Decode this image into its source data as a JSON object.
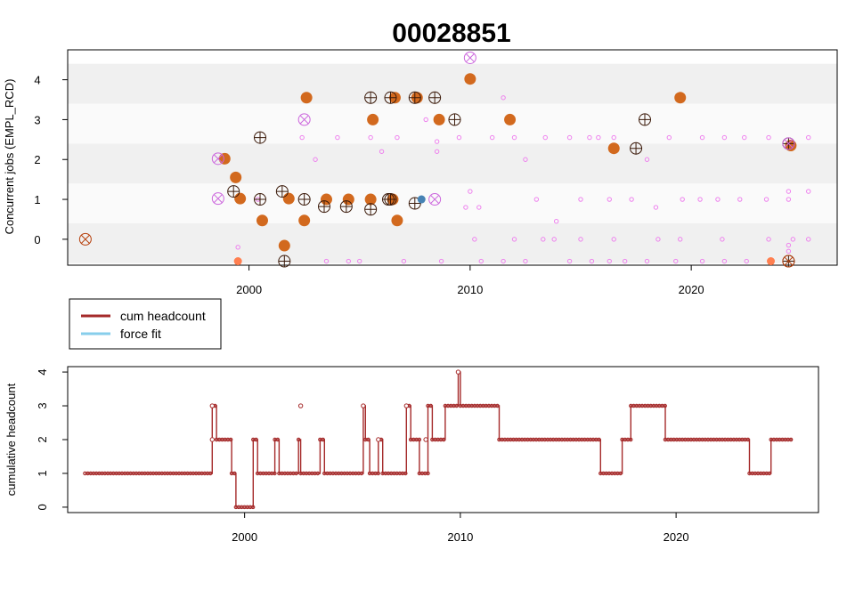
{
  "chart_data": [
    {
      "type": "scatter",
      "title": "00028851",
      "ylabel": "Concurrent jobs (EMPL_RCD)",
      "xlim": [
        1991.8,
        2026.6
      ],
      "ylim": [
        -0.65,
        4.75
      ],
      "x_ticks": [
        2000,
        2010,
        2020
      ],
      "y_ticks": [
        0,
        1,
        2,
        3,
        4
      ],
      "bands": [
        {
          "y": [
            -0.6,
            0.4
          ],
          "color": "#f0f0f0"
        },
        {
          "y": [
            0.4,
            1.4
          ],
          "color": "#fafafa"
        },
        {
          "y": [
            1.4,
            2.4
          ],
          "color": "#f0f0f0"
        },
        {
          "y": [
            2.4,
            3.4
          ],
          "color": "#fafafa"
        },
        {
          "y": [
            3.4,
            4.4
          ],
          "color": "#f0f0f0"
        }
      ],
      "colors": {
        "main": "#d2691e",
        "crossed": "#b7410e",
        "purple": "#ee82ee",
        "blue": "#4682b4",
        "salmon": "#ff7f50"
      },
      "series": [
        {
          "points": [
            [
              1998.9,
              2.02
            ],
            [
              1999.4,
              1.55
            ],
            [
              1999.6,
              1.02
            ],
            [
              2000.6,
              0.47
            ],
            [
              2001.6,
              -0.16
            ],
            [
              2001.8,
              1.02
            ],
            [
              2002.5,
              0.47
            ],
            [
              2002.6,
              3.55
            ],
            [
              2003.5,
              1.0
            ],
            [
              2004.5,
              1.0
            ],
            [
              2005.5,
              1.0
            ],
            [
              2005.6,
              3.0
            ],
            [
              2006.5,
              1.0
            ],
            [
              2006.6,
              3.55
            ],
            [
              2006.7,
              0.47
            ],
            [
              2007.6,
              3.55
            ],
            [
              2008.6,
              3.0
            ],
            [
              2010.0,
              4.02
            ],
            [
              2011.8,
              3.0
            ],
            [
              2016.5,
              2.28
            ],
            [
              2019.5,
              3.55
            ],
            [
              2024.5,
              2.35
            ]
          ]
        },
        {
          "points": [
            [
              1999.3,
              1.2
            ],
            [
              2000.5,
              1.0
            ],
            [
              2000.5,
              2.55
            ],
            [
              2001.5,
              1.2
            ],
            [
              2001.6,
              -0.55
            ],
            [
              2002.5,
              1.0
            ],
            [
              2003.4,
              0.82
            ],
            [
              2004.4,
              0.82
            ],
            [
              2005.5,
              0.75
            ],
            [
              2005.5,
              3.55
            ],
            [
              2006.3,
              1.0
            ],
            [
              2006.4,
              3.55
            ],
            [
              2006.4,
              1.0
            ],
            [
              2007.5,
              0.9
            ],
            [
              2007.5,
              3.55
            ],
            [
              2008.4,
              3.55
            ],
            [
              2009.3,
              3.0
            ],
            [
              2017.5,
              2.28
            ],
            [
              2017.9,
              3.0
            ],
            [
              2024.4,
              2.4
            ],
            [
              2024.4,
              -0.55
            ]
          ]
        },
        {
          "points": [
            [
              1992.6,
              0.0
            ],
            [
              1998.6,
              2.02
            ],
            [
              1998.6,
              1.02
            ],
            [
              2002.5,
              3.0
            ],
            [
              2008.4,
              1.0
            ],
            [
              2010.0,
              4.55
            ],
            [
              2024.4,
              2.4
            ],
            [
              2024.4,
              -0.55
            ]
          ]
        },
        {
          "points": [
            [
              1999.5,
              -0.55
            ],
            [
              2023.6,
              -0.55
            ]
          ]
        },
        {
          "points": [
            [
              2007.8,
              1.0
            ]
          ]
        },
        {
          "points": [
            [
              1999.5,
              -0.2
            ],
            [
              2000.4,
              1.0
            ],
            [
              2002.4,
              2.55
            ],
            [
              2003.0,
              2.0
            ],
            [
              2004.0,
              2.55
            ],
            [
              2005.5,
              2.55
            ],
            [
              2006.0,
              2.2
            ],
            [
              2006.7,
              2.55
            ],
            [
              2008.0,
              3.0
            ],
            [
              2008.5,
              2.2
            ],
            [
              2008.5,
              2.45
            ],
            [
              2009.5,
              2.55
            ],
            [
              2009.8,
              0.8
            ],
            [
              2010.0,
              1.2
            ],
            [
              2010.4,
              0.8
            ],
            [
              2011.0,
              2.55
            ],
            [
              2011.5,
              3.55
            ],
            [
              2012.0,
              2.55
            ],
            [
              2012.5,
              2.0
            ],
            [
              2013.0,
              1.0
            ],
            [
              2013.4,
              2.55
            ],
            [
              2013.9,
              0.45
            ],
            [
              2014.5,
              2.55
            ],
            [
              2015.0,
              1.0
            ],
            [
              2015.4,
              2.55
            ],
            [
              2015.8,
              2.55
            ],
            [
              2016.3,
              1.0
            ],
            [
              2016.5,
              2.55
            ],
            [
              2017.3,
              1.0
            ],
            [
              2018.0,
              2.0
            ],
            [
              2018.4,
              0.8
            ],
            [
              2019.0,
              2.55
            ],
            [
              2019.6,
              1.0
            ],
            [
              2020.4,
              1.0
            ],
            [
              2020.5,
              2.55
            ],
            [
              2021.2,
              1.0
            ],
            [
              2021.5,
              2.55
            ],
            [
              2022.2,
              1.0
            ],
            [
              2022.4,
              2.55
            ],
            [
              2023.4,
              1.0
            ],
            [
              2023.5,
              2.55
            ],
            [
              2024.4,
              1.0
            ],
            [
              2024.4,
              1.2
            ],
            [
              2024.4,
              -0.15
            ],
            [
              2025.3,
              2.55
            ],
            [
              2025.3,
              1.2
            ],
            [
              2025.3,
              0.0
            ],
            [
              2003.5,
              -0.55
            ],
            [
              2004.5,
              -0.55
            ],
            [
              2005.0,
              -0.55
            ],
            [
              2007.0,
              -0.55
            ],
            [
              2008.7,
              -0.55
            ],
            [
              2010.5,
              -0.55
            ],
            [
              2011.5,
              -0.55
            ],
            [
              2012.5,
              -0.55
            ],
            [
              2013.3,
              0.0
            ],
            [
              2014.5,
              -0.55
            ],
            [
              2015.5,
              -0.55
            ],
            [
              2016.3,
              -0.55
            ],
            [
              2017.0,
              -0.55
            ],
            [
              2018.0,
              -0.55
            ],
            [
              2019.3,
              -0.55
            ],
            [
              2020.5,
              -0.55
            ],
            [
              2021.5,
              -0.55
            ],
            [
              2022.5,
              -0.55
            ],
            [
              2024.6,
              0.0
            ],
            [
              2010.2,
              0.0
            ],
            [
              2012.0,
              0.0
            ],
            [
              2013.8,
              0.0
            ],
            [
              2015.0,
              0.0
            ],
            [
              2016.5,
              0.0
            ],
            [
              2018.5,
              0.0
            ],
            [
              2019.5,
              0.0
            ],
            [
              2021.4,
              0.0
            ],
            [
              2024.4,
              -0.3
            ],
            [
              2023.5,
              0.0
            ]
          ]
        }
      ]
    },
    {
      "type": "line",
      "ylabel": "cumulative headcount",
      "xlim": [
        1991.8,
        2026.6
      ],
      "ylim": [
        -0.16,
        4.16
      ],
      "x_ticks": [
        2000,
        2010,
        2020
      ],
      "y_ticks": [
        0,
        1,
        2,
        3,
        4
      ],
      "color": "#a52a2a",
      "legend": {
        "position": "between-panels-left",
        "entries": [
          {
            "label": "cum headcount",
            "color": "#a52a2a"
          },
          {
            "label": "force fit",
            "color": "#87ceeb"
          }
        ]
      },
      "steps": [
        [
          1992.6,
          1
        ],
        [
          1998.5,
          1
        ],
        [
          1998.5,
          3
        ],
        [
          1998.7,
          3
        ],
        [
          1998.7,
          2
        ],
        [
          1999.4,
          2
        ],
        [
          1999.4,
          1
        ],
        [
          1999.6,
          1
        ],
        [
          1999.6,
          0
        ],
        [
          2000.4,
          0
        ],
        [
          2000.4,
          2
        ],
        [
          2000.6,
          2
        ],
        [
          2000.6,
          1
        ],
        [
          2001.4,
          1
        ],
        [
          2001.4,
          2
        ],
        [
          2001.6,
          2
        ],
        [
          2001.6,
          1
        ],
        [
          2002.5,
          1
        ],
        [
          2002.5,
          2
        ],
        [
          2002.6,
          2
        ],
        [
          2002.6,
          1
        ],
        [
          2003.5,
          1
        ],
        [
          2003.5,
          2
        ],
        [
          2003.7,
          2
        ],
        [
          2003.7,
          1
        ],
        [
          2005.5,
          1
        ],
        [
          2005.5,
          3
        ],
        [
          2005.6,
          3
        ],
        [
          2005.6,
          2
        ],
        [
          2005.8,
          2
        ],
        [
          2005.8,
          1
        ],
        [
          2006.2,
          1
        ],
        [
          2006.2,
          2
        ],
        [
          2006.4,
          2
        ],
        [
          2006.4,
          1
        ],
        [
          2007.5,
          1
        ],
        [
          2007.5,
          3
        ],
        [
          2007.7,
          3
        ],
        [
          2007.7,
          2
        ],
        [
          2008.1,
          2
        ],
        [
          2008.1,
          1
        ],
        [
          2008.5,
          1
        ],
        [
          2008.5,
          3
        ],
        [
          2008.7,
          3
        ],
        [
          2008.7,
          2
        ],
        [
          2009.3,
          2
        ],
        [
          2009.3,
          3
        ],
        [
          2009.9,
          3
        ],
        [
          2009.9,
          4
        ],
        [
          2010.0,
          4
        ],
        [
          2010.0,
          3
        ],
        [
          2011.8,
          3
        ],
        [
          2011.8,
          2
        ],
        [
          2016.5,
          2
        ],
        [
          2016.5,
          1
        ],
        [
          2017.5,
          1
        ],
        [
          2017.5,
          2
        ],
        [
          2017.9,
          2
        ],
        [
          2017.9,
          3
        ],
        [
          2019.5,
          3
        ],
        [
          2019.5,
          2
        ],
        [
          2023.4,
          2
        ],
        [
          2023.4,
          1
        ],
        [
          2024.4,
          1
        ],
        [
          2024.4,
          2
        ],
        [
          2025.4,
          2
        ]
      ],
      "circles": [
        [
          1998.5,
          2
        ],
        [
          1998.5,
          3
        ],
        [
          2002.6,
          3
        ],
        [
          2005.5,
          3
        ],
        [
          2006.2,
          2
        ],
        [
          2007.5,
          3
        ],
        [
          2008.4,
          2
        ],
        [
          2009.9,
          4
        ]
      ]
    }
  ]
}
